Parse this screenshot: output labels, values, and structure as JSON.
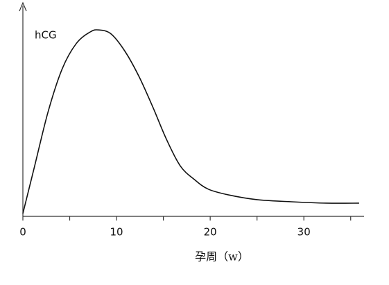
{
  "chart_data": {
    "type": "line",
    "y_label": "hCG",
    "x_label": "孕周（w）",
    "x": [
      0,
      1.26,
      2.7,
      4.2,
      5.7,
      7.2,
      8.1,
      9.4,
      10.9,
      12.4,
      13.9,
      15.3,
      16.8,
      18.3,
      19.8,
      22,
      25,
      28.7,
      32.4,
      35.9
    ],
    "series": [
      {
        "color": "#111111",
        "values": [
          1.5,
          26,
          54,
          76,
          89,
          95,
          96,
          94,
          85,
          72,
          56,
          40,
          26,
          19,
          14,
          11,
          8.6,
          7.5,
          6.8,
          6.8
        ]
      }
    ],
    "xlim": [
      0,
      36.5
    ],
    "xticks": [
      0,
      10,
      20,
      30
    ],
    "minor_xticks": [
      5,
      15,
      25,
      35
    ],
    "ylim": [
      0,
      100
    ]
  }
}
